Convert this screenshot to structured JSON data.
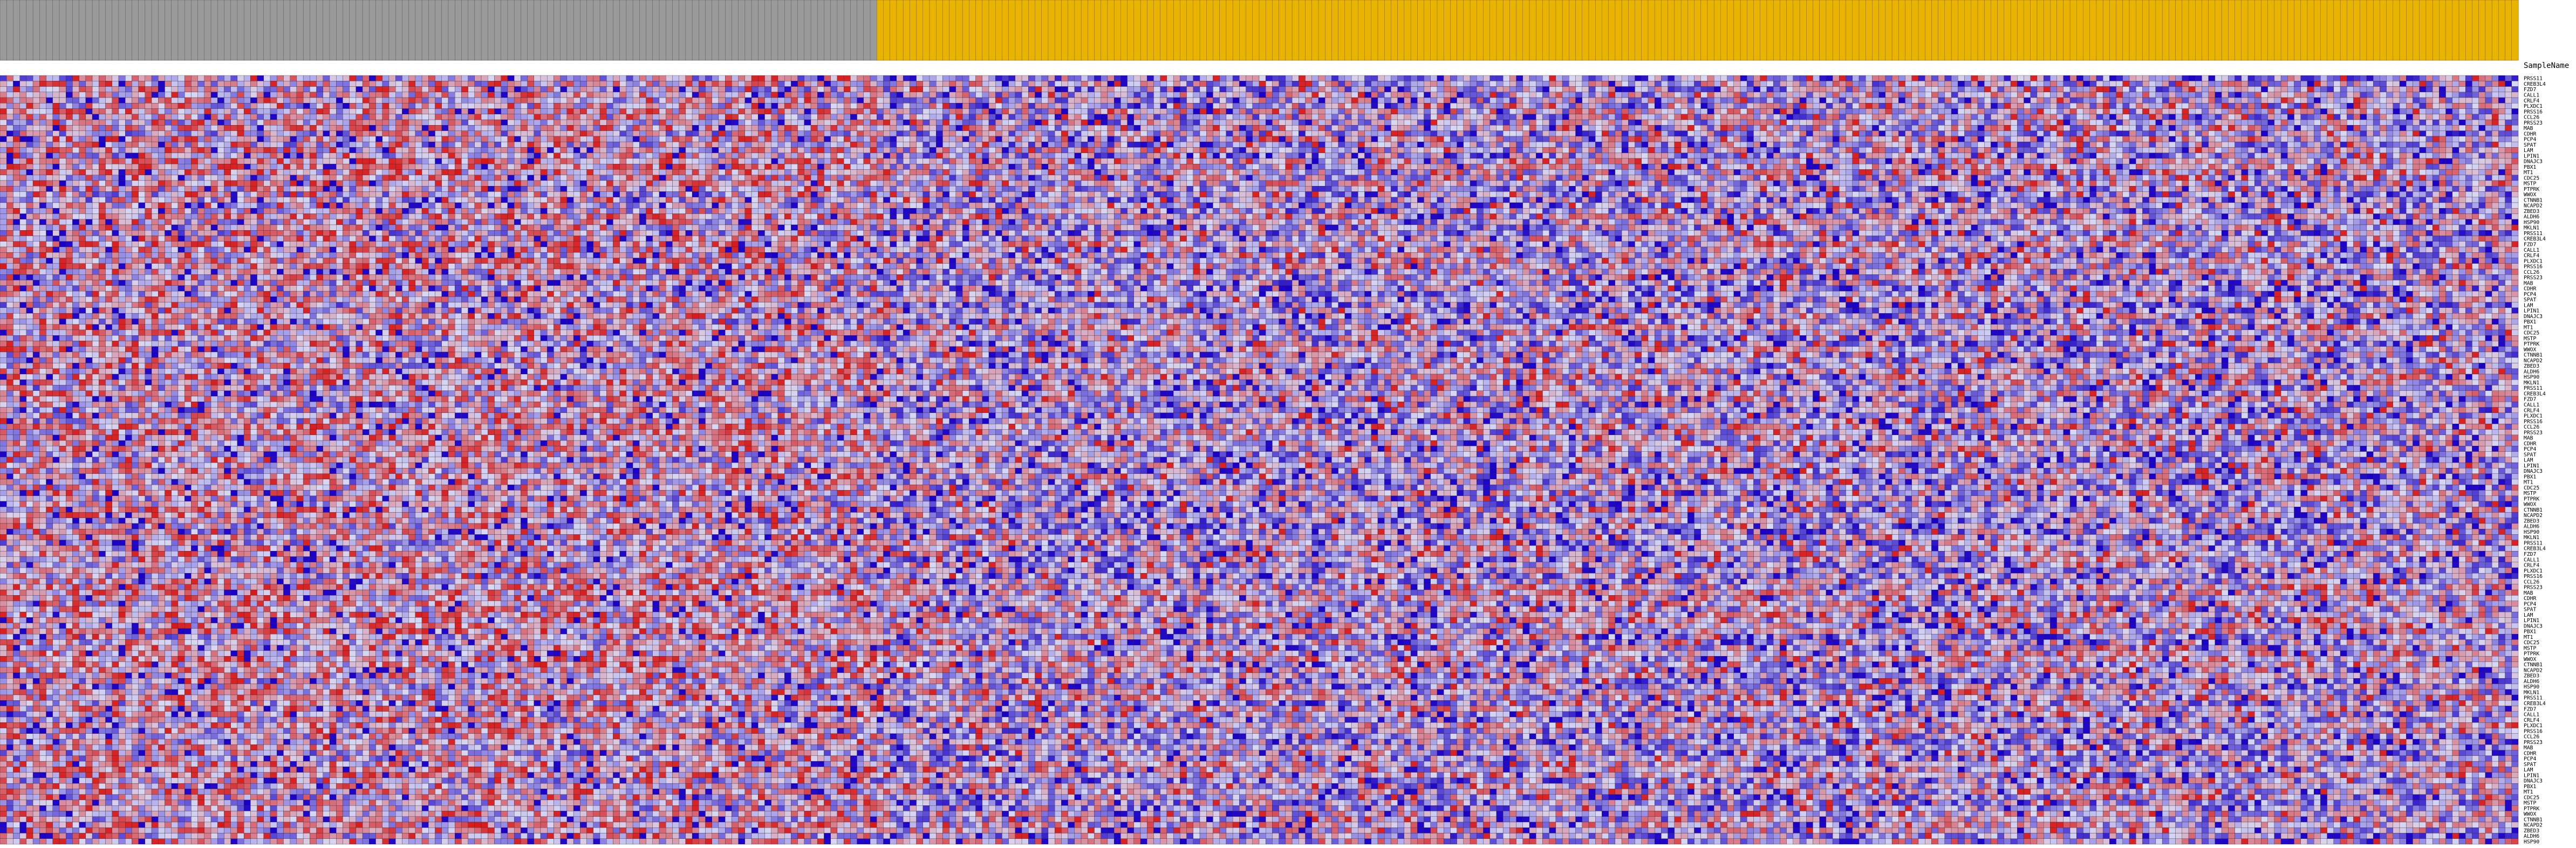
{
  "chart_data": {
    "type": "heatmap",
    "title": "",
    "column_header_label": "SampleName",
    "class_colors": {
      "group_a": "#9a9a9a",
      "group_b": "#e8b400"
    },
    "color_scale": {
      "low": "#1a00c8",
      "mid": "#d8d8f4",
      "high": "#d81818"
    },
    "grid": true,
    "n_columns": 382,
    "n_group_a_columns": 133,
    "n_group_b_columns": 249,
    "row_labels": [
      "PRSS11",
      "CREB3L4",
      "FZD7",
      "CALL1",
      "CRLF4",
      "PLXDC1",
      "PRSS16",
      "CCL26",
      "PRSS23",
      "MAB",
      "CDHR",
      "PCP4",
      "SPAT",
      "LAM",
      "LPIN1",
      "DNAJC3",
      "PBX1",
      "MT1",
      "CDC25",
      "MSTP",
      "PTPRK",
      "WWOX",
      "CTNNB1",
      "NCAPD2",
      "ZBED3",
      "ALDH6",
      "HSP90",
      "MKLN1",
      "PRSS11",
      "CREB3L4",
      "FZD7",
      "CALL1",
      "CRLF4",
      "PLXDC1",
      "PRSS16",
      "CCL26",
      "PRSS23",
      "MAB",
      "CDHR",
      "PCP4",
      "SPAT",
      "LAM",
      "LPIN1",
      "DNAJC3",
      "PBX1",
      "MT1",
      "CDC25",
      "MSTP",
      "PTPRK",
      "WWOX",
      "CTNNB1",
      "NCAPD2",
      "ZBED3",
      "ALDH6",
      "HSP90",
      "MKLN1",
      "PRSS11",
      "CREB3L4",
      "FZD7",
      "CALL1",
      "CRLF4",
      "PLXDC1",
      "PRSS16",
      "CCL26",
      "PRSS23",
      "MAB",
      "CDHR",
      "PCP4",
      "SPAT",
      "LAM",
      "LPIN1",
      "DNAJC3",
      "PBX1",
      "MT1",
      "CDC25",
      "MSTP",
      "PTPRK",
      "WWOX",
      "CTNNB1",
      "NCAPD2",
      "ZBED3",
      "ALDH6",
      "HSP90",
      "MKLN1",
      "PRSS11",
      "CREB3L4",
      "FZD7",
      "CALL1",
      "CRLF4",
      "PLXDC1",
      "PRSS16",
      "CCL26",
      "PRSS23",
      "MAB",
      "CDHR",
      "PCP4",
      "SPAT",
      "LAM",
      "LPIN1",
      "DNAJC3",
      "PBX1",
      "MT1",
      "CDC25",
      "MSTP",
      "PTPRK",
      "WWOX",
      "CTNNB1",
      "NCAPD2",
      "ZBED3",
      "ALDH6",
      "HSP90",
      "MKLN1",
      "PRSS11",
      "CREB3L4",
      "FZD7",
      "CALL1",
      "CRLF4",
      "PLXDC1",
      "PRSS16",
      "CCL26",
      "PRSS23",
      "MAB",
      "CDHR",
      "PCP4",
      "SPAT",
      "LAM",
      "LPIN1",
      "DNAJC3",
      "PBX1",
      "MT1",
      "CDC25",
      "MSTP",
      "PTPRK",
      "WWOX",
      "CTNNB1",
      "NCAPD2",
      "ZBED3",
      "ALDH6",
      "HSP90"
    ],
    "seed": 12345
  }
}
